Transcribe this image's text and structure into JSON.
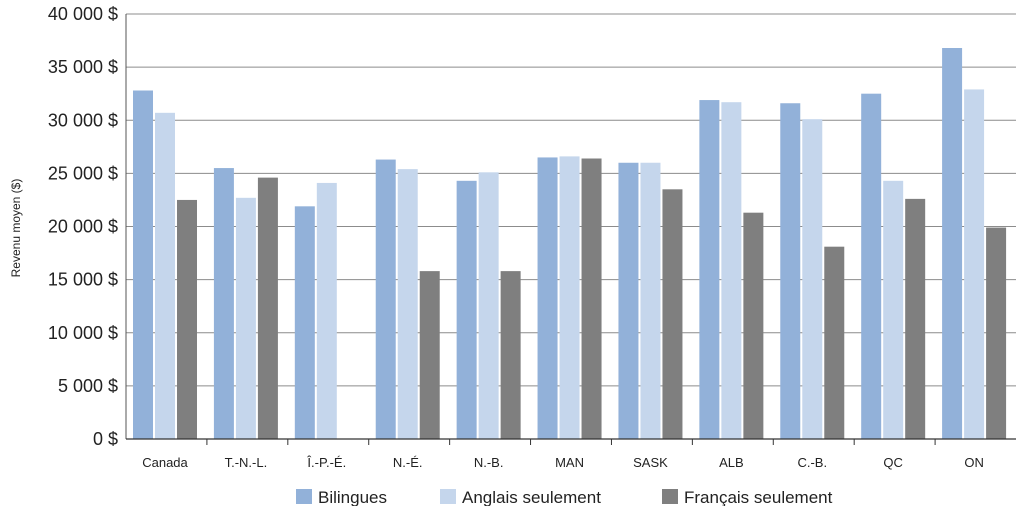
{
  "chart_data": {
    "type": "bar",
    "ylabel": "Revenu moyen ($)",
    "xlabel": "",
    "ylim": [
      0,
      40000
    ],
    "yticks": [
      "0 $",
      "5 000 $",
      "10 000 $",
      "15 000 $",
      "20 000 $",
      "25 000 $",
      "30 000 $",
      "35 000 $",
      "40 000 $"
    ],
    "categories": [
      "Canada",
      "T.-N.-L.",
      "Î.-P.-É.",
      "N.-É.",
      "N.-B.",
      "MAN",
      "SASK",
      "ALB",
      "C.-B.",
      "QC",
      "ON"
    ],
    "series": [
      {
        "name": "Bilingues",
        "color": "#92b1d9",
        "values": [
          32800,
          25500,
          21900,
          26300,
          24300,
          26500,
          26000,
          31900,
          31600,
          32500,
          36800
        ]
      },
      {
        "name": "Anglais seulement",
        "color": "#c5d6ec",
        "values": [
          30700,
          22700,
          24100,
          25400,
          25100,
          26600,
          26000,
          31700,
          30100,
          24300,
          32900
        ]
      },
      {
        "name": "Français seulement",
        "color": "#7f7f7f",
        "values": [
          22500,
          24600,
          null,
          15800,
          15800,
          26400,
          23500,
          21300,
          18100,
          22600,
          19900
        ]
      }
    ],
    "grid": true,
    "legend_position": "bottom"
  }
}
